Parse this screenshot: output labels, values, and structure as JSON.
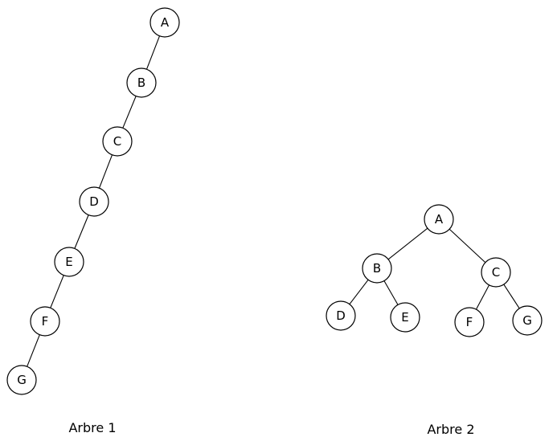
{
  "trees": [
    {
      "id": "tree1",
      "caption": "Arbre 1",
      "nodes": [
        {
          "id": "A",
          "label": "A"
        },
        {
          "id": "B",
          "label": "B"
        },
        {
          "id": "C",
          "label": "C"
        },
        {
          "id": "D",
          "label": "D"
        },
        {
          "id": "E",
          "label": "E"
        },
        {
          "id": "F",
          "label": "F"
        },
        {
          "id": "G",
          "label": "G"
        }
      ],
      "edges": [
        [
          "A",
          "B"
        ],
        [
          "B",
          "C"
        ],
        [
          "C",
          "D"
        ],
        [
          "D",
          "E"
        ],
        [
          "E",
          "F"
        ],
        [
          "F",
          "G"
        ]
      ]
    },
    {
      "id": "tree2",
      "caption": "Arbre 2",
      "nodes": [
        {
          "id": "A",
          "label": "A"
        },
        {
          "id": "B",
          "label": "B"
        },
        {
          "id": "C",
          "label": "C"
        },
        {
          "id": "D",
          "label": "D"
        },
        {
          "id": "E",
          "label": "E"
        },
        {
          "id": "F",
          "label": "F"
        },
        {
          "id": "G",
          "label": "G"
        }
      ],
      "edges": [
        [
          "A",
          "B"
        ],
        [
          "A",
          "C"
        ],
        [
          "B",
          "D"
        ],
        [
          "B",
          "E"
        ],
        [
          "C",
          "F"
        ],
        [
          "C",
          "G"
        ]
      ]
    }
  ]
}
